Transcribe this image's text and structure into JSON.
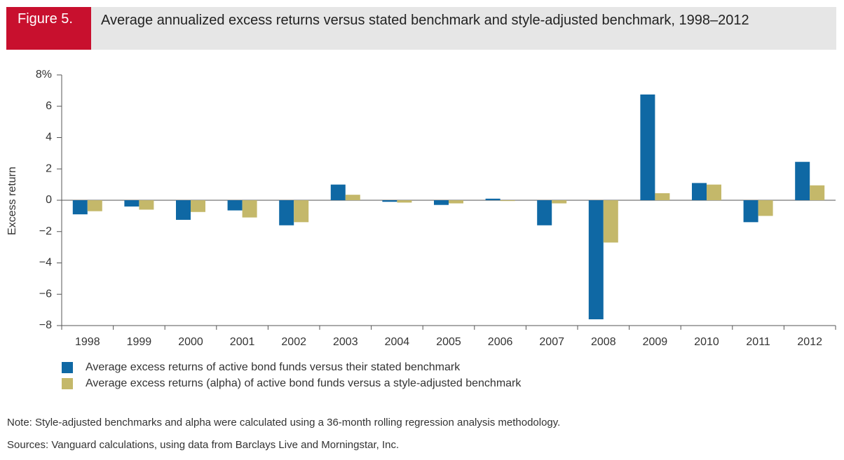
{
  "chart_data": {
    "type": "bar",
    "figure_label": "Figure 5.",
    "title": "Average annualized excess returns versus stated benchmark and style-adjusted benchmark, 1998–2012",
    "y_label": "Excess return",
    "categories": [
      "1998",
      "1999",
      "2000",
      "2001",
      "2002",
      "2003",
      "2004",
      "2005",
      "2006",
      "2007",
      "2008",
      "2009",
      "2010",
      "2011",
      "2012"
    ],
    "series": [
      {
        "name": "Average excess returns of active bond funds versus their stated benchmark",
        "color": "#0f68a4",
        "values": [
          -0.9,
          -0.4,
          -1.25,
          -0.65,
          -1.6,
          1.0,
          -0.1,
          -0.3,
          0.1,
          -1.6,
          -7.6,
          6.75,
          1.1,
          -1.4,
          2.45
        ]
      },
      {
        "name": "Average excess returns (alpha) of active bond funds versus a style-adjusted benchmark",
        "color": "#c4b86a",
        "values": [
          -0.7,
          -0.6,
          -0.75,
          -1.1,
          -1.4,
          0.35,
          -0.15,
          -0.2,
          -0.05,
          -0.2,
          -2.7,
          0.45,
          1.0,
          -1.0,
          0.95
        ]
      }
    ],
    "ylim": [
      -8,
      8
    ],
    "yticks": [
      {
        "value": -8,
        "label": "−8"
      },
      {
        "value": -6,
        "label": "−6"
      },
      {
        "value": -4,
        "label": "−4"
      },
      {
        "value": -2,
        "label": "−2"
      },
      0,
      2,
      4,
      6,
      {
        "value": 8,
        "label": "8%"
      }
    ],
    "note": "Note: Style-adjusted benchmarks and alpha were calculated using a 36-month rolling regression analysis methodology.",
    "sources": "Sources: Vanguard calculations, using data from Barclays Live and Morningstar, Inc."
  }
}
